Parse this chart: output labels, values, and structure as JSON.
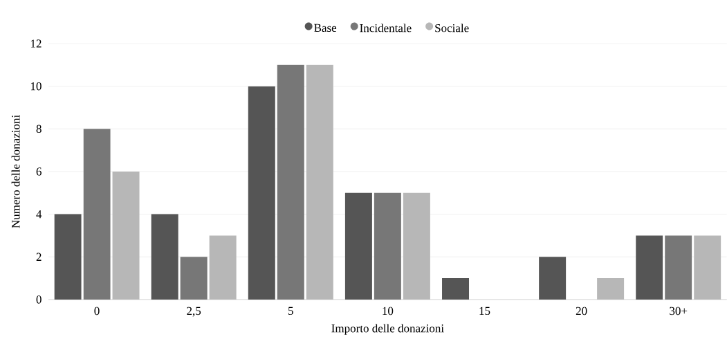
{
  "chart_data": {
    "type": "bar",
    "xlabel": "Importo delle donazioni",
    "ylabel": "Numero delle donazioni",
    "categories": [
      "0",
      "2,5",
      "5",
      "10",
      "15",
      "20",
      "30+"
    ],
    "series": [
      {
        "name": "Base",
        "color": "#555555",
        "values": [
          4,
          4,
          10,
          5,
          1,
          2,
          3
        ]
      },
      {
        "name": "Incidentale",
        "color": "#777777",
        "values": [
          8,
          2,
          11,
          5,
          0,
          0,
          3
        ]
      },
      {
        "name": "Sociale",
        "color": "#b7b7b7",
        "values": [
          6,
          3,
          11,
          5,
          0,
          1,
          3
        ]
      }
    ],
    "ylim": [
      0,
      12
    ],
    "yticks": [
      0,
      2,
      4,
      6,
      8,
      10,
      12
    ],
    "grid": "y",
    "legend": "top"
  }
}
